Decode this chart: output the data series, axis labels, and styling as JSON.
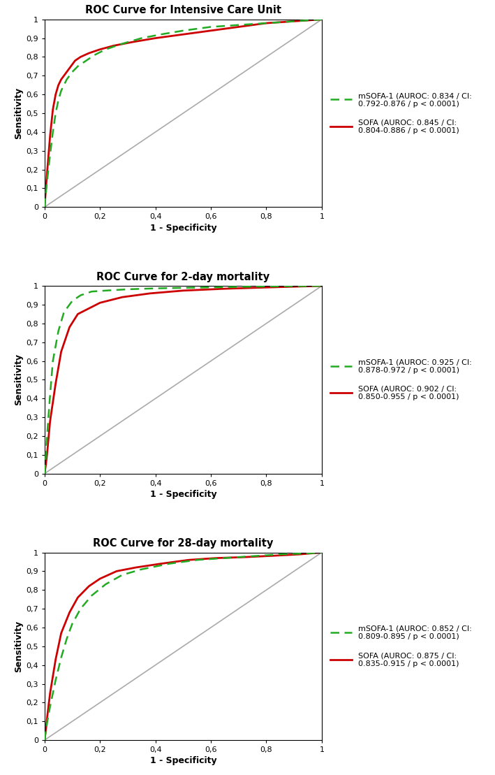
{
  "panels": [
    {
      "title": "ROC Curve for Intensive Care Unit",
      "msofa_label": "mSOFA-1 (AUROC: 0.834 / CI:\n0.792-0.876 / p < 0.0001)",
      "sofa_label": "SOFA (AUROC: 0.845 / CI:\n0.804-0.886 / p < 0.0001)",
      "msofa_fpr": [
        0.0,
        0.005,
        0.01,
        0.02,
        0.03,
        0.04,
        0.05,
        0.06,
        0.07,
        0.08,
        0.1,
        0.12,
        0.15,
        0.18,
        0.22,
        0.28,
        0.35,
        0.42,
        0.5,
        0.6,
        0.7,
        0.8,
        0.9,
        1.0
      ],
      "msofa_tpr": [
        0.0,
        0.08,
        0.15,
        0.28,
        0.4,
        0.5,
        0.57,
        0.62,
        0.65,
        0.68,
        0.72,
        0.75,
        0.78,
        0.81,
        0.84,
        0.87,
        0.9,
        0.92,
        0.94,
        0.96,
        0.97,
        0.98,
        0.99,
        1.0
      ],
      "sofa_fpr": [
        0.0,
        0.005,
        0.01,
        0.02,
        0.03,
        0.04,
        0.05,
        0.06,
        0.07,
        0.09,
        0.11,
        0.13,
        0.16,
        0.2,
        0.25,
        0.32,
        0.4,
        0.5,
        0.6,
        0.7,
        0.8,
        0.9,
        1.0
      ],
      "sofa_tpr": [
        0.0,
        0.1,
        0.2,
        0.38,
        0.52,
        0.6,
        0.65,
        0.68,
        0.7,
        0.74,
        0.78,
        0.8,
        0.82,
        0.84,
        0.86,
        0.88,
        0.9,
        0.92,
        0.94,
        0.96,
        0.98,
        0.99,
        1.0
      ]
    },
    {
      "title": "ROC Curve for 2-day mortality",
      "msofa_label": "mSOFA-1 (AUROC: 0.925 / CI:\n0.878-0.972 / p < 0.0001)",
      "sofa_label": "SOFA (AUROC: 0.902 / CI:\n0.850-0.955 / p < 0.0001)",
      "msofa_fpr": [
        0.0,
        0.005,
        0.01,
        0.02,
        0.03,
        0.05,
        0.07,
        0.1,
        0.13,
        0.17,
        0.22,
        0.3,
        0.4,
        0.55,
        0.7,
        0.85,
        1.0
      ],
      "msofa_tpr": [
        0.0,
        0.1,
        0.22,
        0.42,
        0.6,
        0.76,
        0.86,
        0.92,
        0.95,
        0.97,
        0.975,
        0.982,
        0.987,
        0.991,
        0.995,
        0.998,
        1.0
      ],
      "sofa_fpr": [
        0.0,
        0.005,
        0.01,
        0.02,
        0.04,
        0.06,
        0.09,
        0.12,
        0.16,
        0.2,
        0.28,
        0.38,
        0.5,
        0.65,
        0.8,
        0.92,
        1.0
      ],
      "sofa_tpr": [
        0.0,
        0.05,
        0.12,
        0.28,
        0.48,
        0.65,
        0.78,
        0.85,
        0.88,
        0.91,
        0.94,
        0.96,
        0.975,
        0.985,
        0.992,
        0.997,
        1.0
      ]
    },
    {
      "title": "ROC Curve for 28-day mortality",
      "msofa_label": "mSOFA-1 (AUROC: 0.852 / CI:\n0.809-0.895 / p < 0.0001)",
      "sofa_label": "SOFA (AUROC: 0.875 / CI:\n0.835-0.915 / p < 0.0001)",
      "msofa_fpr": [
        0.0,
        0.005,
        0.01,
        0.02,
        0.04,
        0.06,
        0.08,
        0.1,
        0.13,
        0.17,
        0.22,
        0.28,
        0.35,
        0.45,
        0.55,
        0.65,
        0.75,
        0.85,
        0.95,
        1.0
      ],
      "msofa_tpr": [
        0.0,
        0.05,
        0.1,
        0.18,
        0.32,
        0.44,
        0.54,
        0.62,
        0.7,
        0.77,
        0.83,
        0.88,
        0.91,
        0.94,
        0.96,
        0.97,
        0.98,
        0.99,
        0.995,
        1.0
      ],
      "sofa_fpr": [
        0.0,
        0.005,
        0.01,
        0.02,
        0.04,
        0.06,
        0.09,
        0.12,
        0.16,
        0.2,
        0.26,
        0.33,
        0.42,
        0.52,
        0.62,
        0.72,
        0.82,
        0.92,
        1.0
      ],
      "sofa_tpr": [
        0.0,
        0.06,
        0.13,
        0.25,
        0.43,
        0.57,
        0.68,
        0.76,
        0.82,
        0.86,
        0.9,
        0.92,
        0.94,
        0.96,
        0.97,
        0.975,
        0.982,
        0.99,
        1.0
      ]
    }
  ],
  "green_color": "#22aa22",
  "red_color": "#cc0000",
  "diagonal_color": "#aaaaaa",
  "background_color": "#ffffff",
  "title_fontsize": 10.5,
  "tick_fontsize": 8,
  "axis_label_fontsize": 9,
  "legend_fontsize": 8,
  "x_ticks": [
    0.0,
    0.2,
    0.4,
    0.6,
    0.8,
    1.0
  ],
  "x_tick_labels": [
    "0",
    "0,2",
    "0,4",
    "0,6",
    "0,8",
    "1"
  ],
  "y_ticks": [
    0.0,
    0.1,
    0.2,
    0.3,
    0.4,
    0.5,
    0.6,
    0.7,
    0.8,
    0.9,
    1.0
  ],
  "y_tick_labels": [
    "0",
    "0,1",
    "0,2",
    "0,3",
    "0,4",
    "0,5",
    "0,6",
    "0,7",
    "0,8",
    "0,9",
    "1"
  ]
}
